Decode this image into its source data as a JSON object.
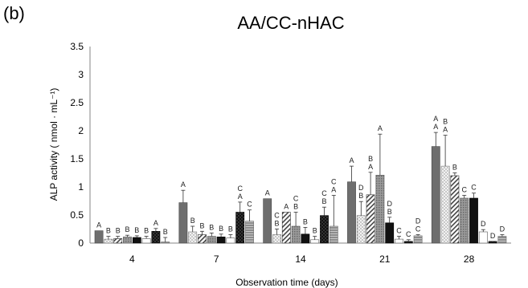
{
  "chart_data": {
    "type": "bar",
    "panel_label": "(b)",
    "title": "AA/CC-nHAC",
    "xlabel": "Observation time (days)",
    "ylabel": "ALP activity ( nmol · mL⁻¹)",
    "ylim": [
      0,
      3.5
    ],
    "yticks": [
      0,
      0.5,
      1,
      1.5,
      2,
      2.5,
      3,
      3.5
    ],
    "ytick_labels": [
      "0",
      "0.5",
      "1",
      "1.5",
      "2",
      "2.5",
      "3",
      "3.5"
    ],
    "grid": false,
    "categories": [
      "4",
      "7",
      "14",
      "21",
      "28"
    ],
    "series": [
      {
        "values": [
          0.22,
          0.72,
          0.79,
          1.09,
          1.72
        ],
        "errors": [
          0.0,
          0.22,
          0.0,
          0.28,
          0.25
        ],
        "letters": [
          [
            "A"
          ],
          [
            "A"
          ],
          [
            "A"
          ],
          [
            "A"
          ],
          [
            "A",
            "A"
          ]
        ]
      },
      {
        "values": [
          0.07,
          0.2,
          0.15,
          0.49,
          1.37
        ],
        "errors": [
          0.05,
          0.1,
          0.1,
          0.25,
          0.55
        ],
        "letters": [
          [
            "B"
          ],
          [
            "B"
          ],
          [
            "C",
            "B"
          ],
          [
            "D",
            "B"
          ],
          [
            "B",
            "A"
          ]
        ]
      },
      {
        "values": [
          0.08,
          0.15,
          0.55,
          0.86,
          1.2
        ],
        "errors": [
          0.04,
          0.06,
          0.0,
          0.4,
          0.05
        ],
        "letters": [
          [
            "B"
          ],
          [
            "B"
          ],
          [
            "A"
          ],
          [
            "B",
            "A"
          ],
          [
            "B"
          ]
        ]
      },
      {
        "values": [
          0.11,
          0.12,
          0.3,
          1.21,
          0.8
        ],
        "errors": [
          0.03,
          0.06,
          0.25,
          0.73,
          0.05
        ],
        "letters": [
          [
            "B"
          ],
          [
            "B"
          ],
          [
            "C",
            "B"
          ],
          [
            "A"
          ],
          [
            "C"
          ]
        ]
      },
      {
        "values": [
          0.1,
          0.11,
          0.16,
          0.36,
          0.8
        ],
        "errors": [
          0.03,
          0.05,
          0.12,
          0.1,
          0.09
        ],
        "letters": [
          [
            "B"
          ],
          [
            "B"
          ],
          [
            "B"
          ],
          [
            "D",
            "B"
          ],
          [
            "C"
          ]
        ]
      },
      {
        "values": [
          0.08,
          0.09,
          0.06,
          0.07,
          0.2
        ],
        "errors": [
          0.04,
          0.06,
          0.06,
          0.05,
          0.04
        ],
        "letters": [
          [
            "B"
          ],
          [
            "B"
          ],
          [
            "B"
          ],
          [
            "C"
          ],
          [
            "D"
          ]
        ]
      },
      {
        "values": [
          0.21,
          0.55,
          0.49,
          0.03,
          0.03
        ],
        "errors": [
          0.05,
          0.18,
          0.15,
          0.03,
          0.0
        ],
        "letters": [
          [
            "A"
          ],
          [
            "C",
            "A"
          ],
          [
            "C",
            "B"
          ],
          [
            "C"
          ],
          [
            "D"
          ]
        ]
      },
      {
        "values": [
          0.02,
          0.39,
          0.3,
          0.13,
          0.12
        ],
        "errors": [
          0.08,
          0.2,
          0.55,
          0.02,
          0.03
        ],
        "letters": [
          [
            "B"
          ],
          [
            "C"
          ],
          [
            "C",
            "A"
          ],
          [
            "D",
            "C"
          ],
          [
            "D"
          ]
        ]
      }
    ]
  }
}
